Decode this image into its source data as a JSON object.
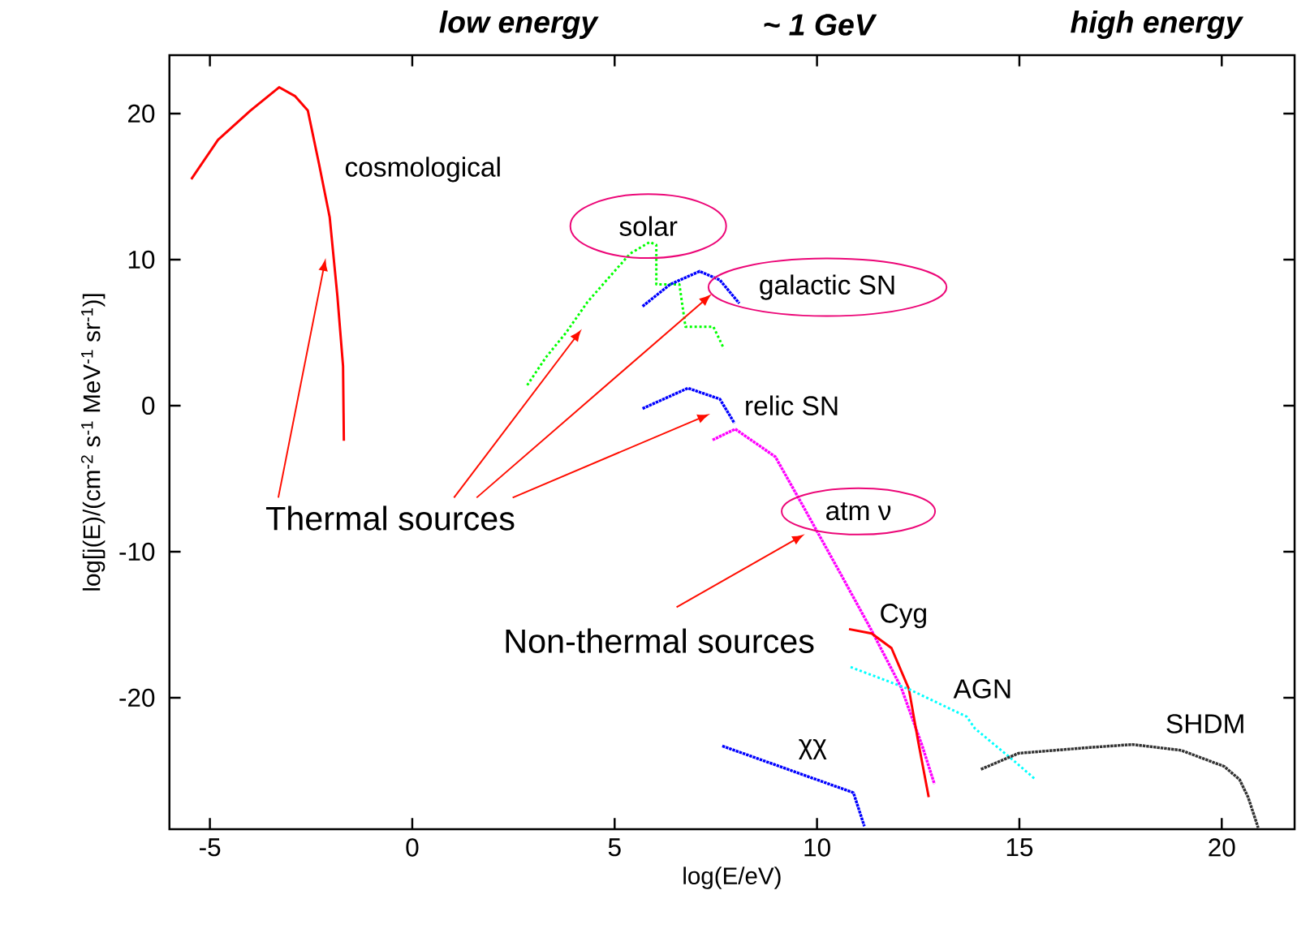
{
  "chart_data": {
    "type": "line",
    "xlabel": "log(E/eV)",
    "ylabel": "log[j(E)/(cm$^{-2}$ s$^{-1}$ MeV$^{-1}$ sr$^{-1}$)]",
    "xlim": [
      -6,
      21.8
    ],
    "ylim": [
      -29,
      24
    ],
    "xticks": [
      -5,
      0,
      5,
      10,
      15,
      20
    ],
    "yticks": [
      -20,
      -10,
      0,
      10,
      20
    ],
    "series": [
      {
        "name": "cosmological",
        "color": "#ff0000",
        "line_style": "solid",
        "x": [
          -5.46,
          -4.8,
          -4.0,
          -3.29,
          -2.9,
          -2.58,
          -2.3,
          -2.04,
          -1.85,
          -1.71,
          -1.69
        ],
        "values": [
          15.5,
          18.2,
          20.2,
          21.8,
          21.2,
          20.2,
          16.5,
          12.9,
          7.5,
          2.7,
          -2.4
        ]
      },
      {
        "name": "solar",
        "color": "#00ff00",
        "line_style": "dashed",
        "x": [
          2.84,
          3.3,
          3.8,
          4.33,
          4.9,
          5.38,
          5.87,
          6.03,
          6.03,
          6.6,
          6.75,
          7.44,
          7.7
        ],
        "values": [
          1.4,
          3.3,
          5.0,
          7.1,
          8.9,
          10.4,
          11.2,
          11.0,
          8.3,
          8.3,
          5.4,
          5.4,
          3.9
        ]
      },
      {
        "name": "galactic SN",
        "color": "#0000ff",
        "line_style": "dotted",
        "x": [
          5.69,
          6.37,
          7.1,
          7.6,
          8.08
        ],
        "values": [
          6.8,
          8.3,
          9.2,
          8.6,
          7.0
        ]
      },
      {
        "name": "relic SN",
        "color": "#0000ff",
        "line_style": "dotted",
        "x": [
          5.69,
          6.81,
          7.6,
          7.96
        ],
        "values": [
          -0.2,
          1.2,
          0.45,
          -1.2
        ]
      },
      {
        "name": "atm ν",
        "color": "#ff00ff",
        "line_style": "dotted",
        "x": [
          7.42,
          7.98,
          8.97,
          9.64,
          10.56,
          11.35,
          12.08,
          12.6,
          12.9
        ],
        "values": [
          -2.35,
          -1.6,
          -3.5,
          -6.8,
          -11.4,
          -15.4,
          -19.3,
          -23.3,
          -25.9
        ]
      },
      {
        "name": "Cyg",
        "color": "#ff0000",
        "line_style": "solid",
        "x": [
          10.79,
          11.35,
          11.84,
          12.27,
          12.5,
          12.76
        ],
        "values": [
          -15.3,
          -15.6,
          -16.6,
          -19.4,
          -23.0,
          -26.8
        ]
      },
      {
        "name": "AGN",
        "color": "#00ffff",
        "line_style": "dashed",
        "x": [
          10.83,
          12.26,
          13.7,
          13.9,
          14.9,
          15.4
        ],
        "values": [
          -17.9,
          -19.4,
          -21.3,
          -22.1,
          -24.4,
          -25.6
        ]
      },
      {
        "name": "SHDM",
        "color": "#333333",
        "line_style": "dotted",
        "x": [
          14.05,
          14.98,
          16.75,
          17.8,
          19.0,
          20.06,
          20.44,
          20.65,
          20.9
        ],
        "values": [
          -24.9,
          -23.8,
          -23.4,
          -23.2,
          -23.6,
          -24.7,
          -25.6,
          -26.8,
          -28.9
        ]
      },
      {
        "name": "χχ",
        "color": "#0000ff",
        "line_style": "dotted",
        "x": [
          7.66,
          9.38,
          10.9,
          11.17
        ],
        "values": [
          -23.3,
          -25.0,
          -26.5,
          -28.8
        ]
      }
    ],
    "annotations": [
      "low energy",
      "~ 1 GeV",
      "high energy",
      "Thermal sources",
      "Non-thermal sources"
    ]
  }
}
